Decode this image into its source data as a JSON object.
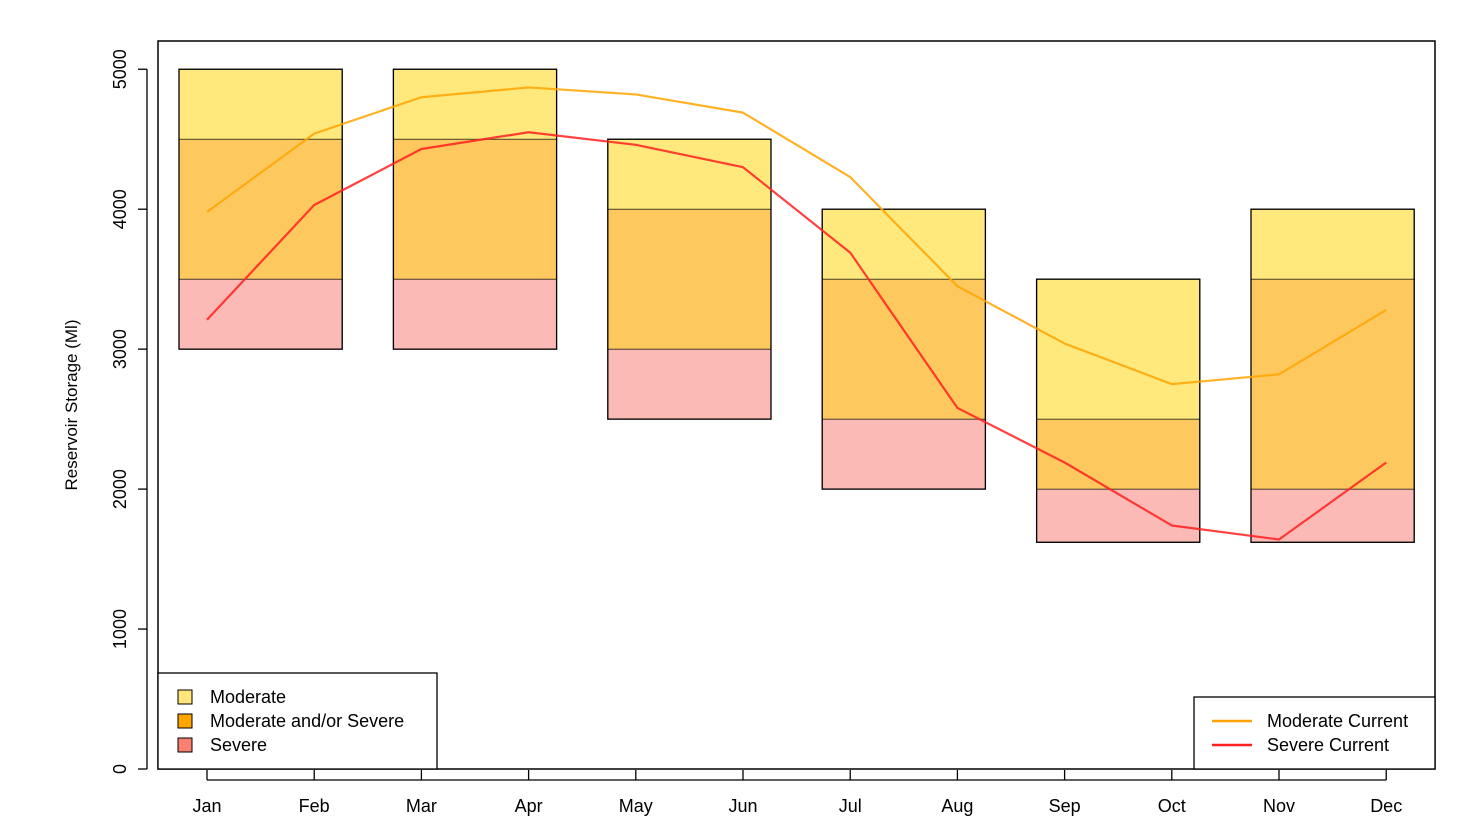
{
  "chart_data": {
    "type": "bar",
    "categories": [
      "Jan",
      "Feb",
      "Mar",
      "Apr",
      "May",
      "Jun",
      "Jul",
      "Aug",
      "Sep",
      "Oct",
      "Nov",
      "Dec"
    ],
    "xlabel": "",
    "ylabel": "Reservoir Storage (Ml)",
    "ylim": [
      0,
      5200
    ],
    "yticks": [
      0,
      1000,
      2000,
      3000,
      4000,
      5000
    ],
    "grid": false,
    "bands": {
      "note": "Floating bands drawn over alternating month pairs",
      "boxes": [
        {
          "categories": [
            "Jan",
            "Feb"
          ],
          "severe": [
            3000,
            3500
          ],
          "moderate_and_or_severe": [
            3500,
            4500
          ],
          "moderate": [
            4500,
            5000
          ]
        },
        {
          "categories": [
            "Mar",
            "Apr"
          ],
          "severe": [
            3000,
            3500
          ],
          "moderate_and_or_severe": [
            3500,
            4500
          ],
          "moderate": [
            4500,
            5000
          ]
        },
        {
          "categories": [
            "May",
            "Jun"
          ],
          "severe": [
            2500,
            3000
          ],
          "moderate_and_or_severe": [
            3000,
            4000
          ],
          "moderate": [
            4000,
            4500
          ]
        },
        {
          "categories": [
            "Jul",
            "Aug"
          ],
          "severe": [
            2000,
            2500
          ],
          "moderate_and_or_severe": [
            2500,
            3500
          ],
          "moderate": [
            3500,
            4000
          ]
        },
        {
          "categories": [
            "Sep",
            "Oct"
          ],
          "severe": [
            1620,
            2000
          ],
          "moderate_and_or_severe": [
            2000,
            2500
          ],
          "moderate": [
            2500,
            3500
          ]
        },
        {
          "categories": [
            "Nov",
            "Dec"
          ],
          "severe": [
            1620,
            2000
          ],
          "moderate_and_or_severe": [
            2000,
            3500
          ],
          "moderate": [
            3500,
            4000
          ]
        }
      ]
    },
    "series": [
      {
        "name": "Moderate Current",
        "type": "line",
        "color": "#ffa500",
        "values": [
          3980,
          4540,
          4800,
          4870,
          4820,
          4690,
          4230,
          3450,
          3040,
          2750,
          2820,
          3280
        ]
      },
      {
        "name": "Severe Current",
        "type": "line",
        "color": "#ff2020",
        "values": [
          3210,
          4030,
          4430,
          4550,
          4460,
          4300,
          3690,
          2580,
          2190,
          1740,
          1640,
          2190
        ]
      }
    ],
    "band_legend": {
      "position": "bottom-left",
      "entries": [
        {
          "label": "Moderate",
          "color": "#ffe57a"
        },
        {
          "label": "Moderate and/or Severe",
          "color": "#ffa500"
        },
        {
          "label": "Severe",
          "color": "#fa8072"
        }
      ]
    },
    "line_legend": {
      "position": "bottom-right",
      "entries": [
        {
          "label": "Moderate Current",
          "color": "#ffa500"
        },
        {
          "label": "Severe Current",
          "color": "#ff2020"
        }
      ]
    },
    "colors": {
      "moderate_fill": "#ffe97d",
      "moderate_and_or_severe_fill": "#fdc95e",
      "severe_fill": "#fbbab5",
      "box_stroke": "#000000"
    }
  }
}
